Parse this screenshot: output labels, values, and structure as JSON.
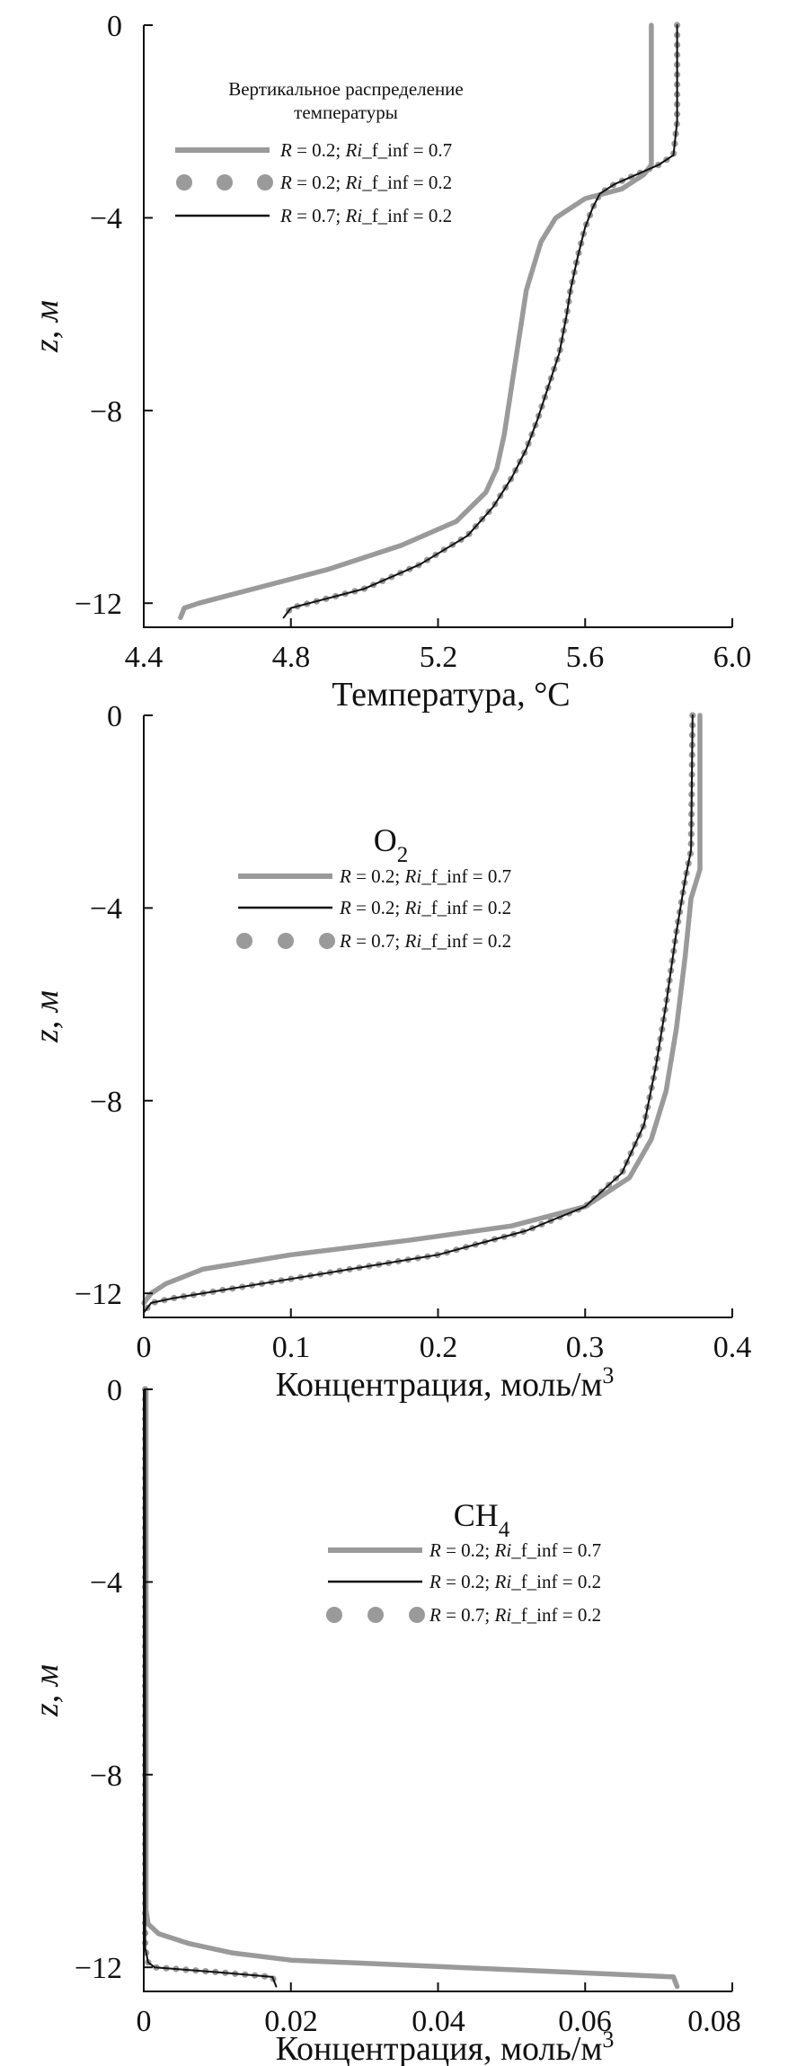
{
  "chart_data": [
    {
      "type": "line",
      "title": "Вертикальное распределение температуры",
      "title_lines": [
        "Вертикальное распределение",
        "температуры"
      ],
      "xlabel": "Температура, °C",
      "ylabel": "z, м",
      "xlim": [
        4.4,
        6.0
      ],
      "ylim": [
        -12.5,
        0
      ],
      "xticks": [
        "4.4",
        "4.8",
        "5.2",
        "5.6",
        "6.0"
      ],
      "yticks": [
        "0",
        "−4",
        "−8",
        "−12"
      ],
      "legend": "top-left",
      "series": [
        {
          "name": "R = 0.2; Ri_f_inf = 0.7",
          "name_parts": [
            "R",
            " = 0.2; ",
            "Ri",
            "_f_inf = 0.7"
          ],
          "style": "thick-gray",
          "color": "#9a9a9a",
          "points": [
            [
              5.78,
              0
            ],
            [
              5.78,
              -2.9
            ],
            [
              5.76,
              -3.1
            ],
            [
              5.7,
              -3.4
            ],
            [
              5.6,
              -3.6
            ],
            [
              5.52,
              -4.0
            ],
            [
              5.48,
              -4.5
            ],
            [
              5.46,
              -5.0
            ],
            [
              5.44,
              -5.5
            ],
            [
              5.42,
              -6.5
            ],
            [
              5.4,
              -7.5
            ],
            [
              5.38,
              -8.5
            ],
            [
              5.36,
              -9.2
            ],
            [
              5.33,
              -9.7
            ],
            [
              5.25,
              -10.3
            ],
            [
              5.1,
              -10.8
            ],
            [
              4.9,
              -11.3
            ],
            [
              4.7,
              -11.7
            ],
            [
              4.55,
              -12.0
            ],
            [
              4.51,
              -12.1
            ],
            [
              4.5,
              -12.3
            ]
          ]
        },
        {
          "name": "R = 0.2; Ri_f_inf = 0.2",
          "name_parts": [
            "R",
            " = 0.2; ",
            "Ri",
            "_f_inf = 0.2"
          ],
          "style": "dots-gray",
          "color": "#9a9a9a",
          "points": [
            [
              5.85,
              0
            ],
            [
              5.85,
              -2.0
            ],
            [
              5.84,
              -2.7
            ],
            [
              5.8,
              -2.9
            ],
            [
              5.74,
              -3.1
            ],
            [
              5.68,
              -3.3
            ],
            [
              5.64,
              -3.5
            ],
            [
              5.62,
              -3.8
            ],
            [
              5.6,
              -4.2
            ],
            [
              5.58,
              -4.8
            ],
            [
              5.56,
              -5.5
            ],
            [
              5.55,
              -6.0
            ],
            [
              5.53,
              -6.8
            ],
            [
              5.5,
              -7.5
            ],
            [
              5.47,
              -8.2
            ],
            [
              5.44,
              -8.8
            ],
            [
              5.4,
              -9.4
            ],
            [
              5.35,
              -10.0
            ],
            [
              5.28,
              -10.6
            ],
            [
              5.15,
              -11.2
            ],
            [
              5.0,
              -11.7
            ],
            [
              4.85,
              -12.0
            ],
            [
              4.8,
              -12.1
            ],
            [
              4.78,
              -12.3
            ]
          ]
        },
        {
          "name": "R = 0.7; Ri_f_inf = 0.2",
          "name_parts": [
            "R",
            " = 0.7; ",
            "Ri",
            "_f_inf = 0.2"
          ],
          "style": "thin-black",
          "color": "#111111",
          "points": [
            [
              5.85,
              0
            ],
            [
              5.85,
              -2.0
            ],
            [
              5.84,
              -2.7
            ],
            [
              5.8,
              -2.9
            ],
            [
              5.74,
              -3.1
            ],
            [
              5.68,
              -3.3
            ],
            [
              5.64,
              -3.5
            ],
            [
              5.62,
              -3.8
            ],
            [
              5.6,
              -4.2
            ],
            [
              5.58,
              -4.8
            ],
            [
              5.56,
              -5.5
            ],
            [
              5.55,
              -6.0
            ],
            [
              5.53,
              -6.8
            ],
            [
              5.5,
              -7.5
            ],
            [
              5.47,
              -8.2
            ],
            [
              5.44,
              -8.8
            ],
            [
              5.4,
              -9.4
            ],
            [
              5.35,
              -10.0
            ],
            [
              5.28,
              -10.6
            ],
            [
              5.15,
              -11.2
            ],
            [
              5.0,
              -11.7
            ],
            [
              4.85,
              -12.0
            ],
            [
              4.8,
              -12.1
            ],
            [
              4.78,
              -12.3
            ]
          ]
        }
      ]
    },
    {
      "type": "line",
      "title": "O2",
      "title_parts": [
        "O",
        "2"
      ],
      "xlabel": "Концентрация, моль/м",
      "xlabel_sup": "3",
      "ylabel": "z, м",
      "xlim": [
        0,
        0.4
      ],
      "ylim": [
        -12.5,
        0
      ],
      "xticks": [
        "0",
        "0.1",
        "0.2",
        "0.3",
        "0.4"
      ],
      "yticks": [
        "0",
        "−4",
        "−8",
        "−12"
      ],
      "legend": "top-center",
      "series": [
        {
          "name": "R = 0.2; Ri_f_inf = 0.7",
          "name_parts": [
            "R",
            " = 0.2; ",
            "Ri",
            "_f_inf = 0.7"
          ],
          "style": "thick-gray",
          "color": "#9a9a9a",
          "points": [
            [
              0.378,
              0
            ],
            [
              0.378,
              -3.2
            ],
            [
              0.372,
              -3.8
            ],
            [
              0.368,
              -5.0
            ],
            [
              0.362,
              -6.5
            ],
            [
              0.355,
              -7.8
            ],
            [
              0.345,
              -8.8
            ],
            [
              0.33,
              -9.6
            ],
            [
              0.3,
              -10.2
            ],
            [
              0.25,
              -10.6
            ],
            [
              0.18,
              -10.9
            ],
            [
              0.1,
              -11.2
            ],
            [
              0.04,
              -11.5
            ],
            [
              0.015,
              -11.8
            ],
            [
              0.005,
              -12.0
            ],
            [
              0,
              -12.2
            ]
          ]
        },
        {
          "name": "R = 0.2; Ri_f_inf = 0.2",
          "name_parts": [
            "R",
            " = 0.2; ",
            "Ri",
            "_f_inf = 0.2"
          ],
          "style": "thin-black",
          "color": "#111111",
          "points": [
            [
              0.373,
              0
            ],
            [
              0.372,
              -2.8
            ],
            [
              0.368,
              -3.4
            ],
            [
              0.362,
              -4.5
            ],
            [
              0.355,
              -6.0
            ],
            [
              0.348,
              -7.3
            ],
            [
              0.34,
              -8.5
            ],
            [
              0.325,
              -9.5
            ],
            [
              0.3,
              -10.2
            ],
            [
              0.26,
              -10.7
            ],
            [
              0.2,
              -11.2
            ],
            [
              0.12,
              -11.6
            ],
            [
              0.06,
              -11.9
            ],
            [
              0.02,
              -12.1
            ],
            [
              0.005,
              -12.2
            ],
            [
              0,
              -12.4
            ]
          ]
        },
        {
          "name": "R = 0.7; Ri_f_inf = 0.2",
          "name_parts": [
            "R",
            " = 0.7; ",
            "Ri",
            "_f_inf = 0.2"
          ],
          "style": "dots-gray",
          "color": "#9a9a9a",
          "points": [
            [
              0.373,
              0
            ],
            [
              0.372,
              -2.8
            ],
            [
              0.368,
              -3.4
            ],
            [
              0.362,
              -4.5
            ],
            [
              0.355,
              -6.0
            ],
            [
              0.348,
              -7.3
            ],
            [
              0.34,
              -8.5
            ],
            [
              0.325,
              -9.5
            ],
            [
              0.3,
              -10.2
            ],
            [
              0.26,
              -10.7
            ],
            [
              0.2,
              -11.2
            ],
            [
              0.12,
              -11.6
            ],
            [
              0.06,
              -11.9
            ],
            [
              0.02,
              -12.1
            ],
            [
              0.005,
              -12.2
            ],
            [
              0,
              -12.4
            ]
          ]
        }
      ]
    },
    {
      "type": "line",
      "title": "CH4",
      "title_parts": [
        "CH",
        "4"
      ],
      "xlabel": "Концентрация, моль/м",
      "xlabel_sup": "3",
      "ylabel": "z, м",
      "xlim": [
        0,
        0.08
      ],
      "ylim": [
        -12.5,
        0
      ],
      "xticks": [
        "0",
        "0.02",
        "0.04",
        "0.06",
        "0.08"
      ],
      "yticks": [
        "0",
        "−4",
        "−8",
        "−12"
      ],
      "legend": "top-right",
      "series": [
        {
          "name": "R = 0.2; Ri_f_inf = 0.7",
          "name_parts": [
            "R",
            " = 0.2; ",
            "Ri",
            "_f_inf = 0.7"
          ],
          "style": "thick-gray",
          "color": "#9a9a9a",
          "points": [
            [
              0.0003,
              0
            ],
            [
              0.0003,
              -10.8
            ],
            [
              0.0006,
              -11.1
            ],
            [
              0.002,
              -11.3
            ],
            [
              0.006,
              -11.5
            ],
            [
              0.012,
              -11.7
            ],
            [
              0.02,
              -11.85
            ],
            [
              0.035,
              -11.95
            ],
            [
              0.05,
              -12.05
            ],
            [
              0.065,
              -12.15
            ],
            [
              0.072,
              -12.2
            ],
            [
              0.0725,
              -12.4
            ]
          ]
        },
        {
          "name": "R = 0.2; Ri_f_inf = 0.2",
          "name_parts": [
            "R",
            " = 0.2; ",
            "Ri",
            "_f_inf = 0.2"
          ],
          "style": "thin-black",
          "color": "#111111",
          "points": [
            [
              0.0002,
              0
            ],
            [
              0.0002,
              -11.6
            ],
            [
              0.0006,
              -11.9
            ],
            [
              0.0015,
              -12.0
            ],
            [
              0.01,
              -12.1
            ],
            [
              0.0175,
              -12.2
            ],
            [
              0.018,
              -12.4
            ]
          ]
        },
        {
          "name": "R = 0.7; Ri_f_inf = 0.2",
          "name_parts": [
            "R",
            " = 0.7; ",
            "Ri",
            "_f_inf = 0.2"
          ],
          "style": "dots-gray",
          "color": "#9a9a9a",
          "points": [
            [
              0.0002,
              0
            ],
            [
              0.0002,
              -11.6
            ],
            [
              0.0006,
              -11.9
            ],
            [
              0.0015,
              -12.0
            ],
            [
              0.01,
              -12.1
            ],
            [
              0.0175,
              -12.2
            ],
            [
              0.018,
              -12.4
            ]
          ]
        }
      ]
    }
  ]
}
